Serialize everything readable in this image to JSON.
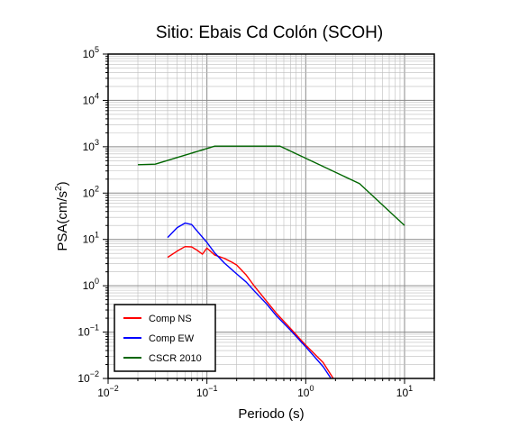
{
  "chart_data": {
    "type": "line",
    "title": "Sitio: Ebais Cd Colón (SCOH)",
    "xlabel": "Periodo (s)",
    "ylabel": {
      "prefix": "PSA(cm/s",
      "sup": "2",
      "suffix": ")"
    },
    "xscale": "log",
    "yscale": "log",
    "xlim": [
      0.01,
      20
    ],
    "ylim": [
      0.01,
      100000
    ],
    "grid": true,
    "legend_position": "bottom-left",
    "x_ticks": [
      {
        "value": 0.01,
        "base": "10",
        "exp": "−2"
      },
      {
        "value": 0.1,
        "base": "10",
        "exp": "−1"
      },
      {
        "value": 1,
        "base": "10",
        "exp": "0"
      },
      {
        "value": 10,
        "base": "10",
        "exp": "1"
      }
    ],
    "y_ticks": [
      {
        "value": 0.01,
        "base": "10",
        "exp": "−2"
      },
      {
        "value": 0.1,
        "base": "10",
        "exp": "−1"
      },
      {
        "value": 1,
        "base": "10",
        "exp": "0"
      },
      {
        "value": 10,
        "base": "10",
        "exp": "1"
      },
      {
        "value": 100,
        "base": "10",
        "exp": "2"
      },
      {
        "value": 1000,
        "base": "10",
        "exp": "3"
      },
      {
        "value": 10000,
        "base": "10",
        "exp": "4"
      },
      {
        "value": 100000,
        "base": "10",
        "exp": "5"
      }
    ],
    "series": [
      {
        "name": "Comp NS",
        "color": "#ff0000",
        "x": [
          0.04,
          0.05,
          0.06,
          0.07,
          0.08,
          0.09,
          0.1,
          0.12,
          0.15,
          0.18,
          0.2,
          0.25,
          0.3,
          0.4,
          0.5,
          0.7,
          1.0,
          1.5,
          1.9
        ],
        "y": [
          4.1,
          5.6,
          7.0,
          6.9,
          5.8,
          4.8,
          6.5,
          4.6,
          3.9,
          3.2,
          2.8,
          1.7,
          1.0,
          0.47,
          0.26,
          0.12,
          0.052,
          0.022,
          0.01
        ]
      },
      {
        "name": "Comp EW",
        "color": "#0000ff",
        "x": [
          0.04,
          0.05,
          0.06,
          0.07,
          0.08,
          0.1,
          0.12,
          0.15,
          0.2,
          0.25,
          0.3,
          0.4,
          0.5,
          0.7,
          1.0,
          1.5,
          1.8
        ],
        "y": [
          11.0,
          18.0,
          22.5,
          21.0,
          15.0,
          8.6,
          5.1,
          3.1,
          1.8,
          1.2,
          0.78,
          0.41,
          0.23,
          0.11,
          0.048,
          0.018,
          0.01
        ]
      },
      {
        "name": "CSCR 2010",
        "color": "#006600",
        "x": [
          0.02,
          0.03,
          0.12,
          0.55,
          3.5,
          10
        ],
        "y": [
          410,
          420,
          1030,
          1030,
          160,
          20
        ]
      }
    ]
  }
}
